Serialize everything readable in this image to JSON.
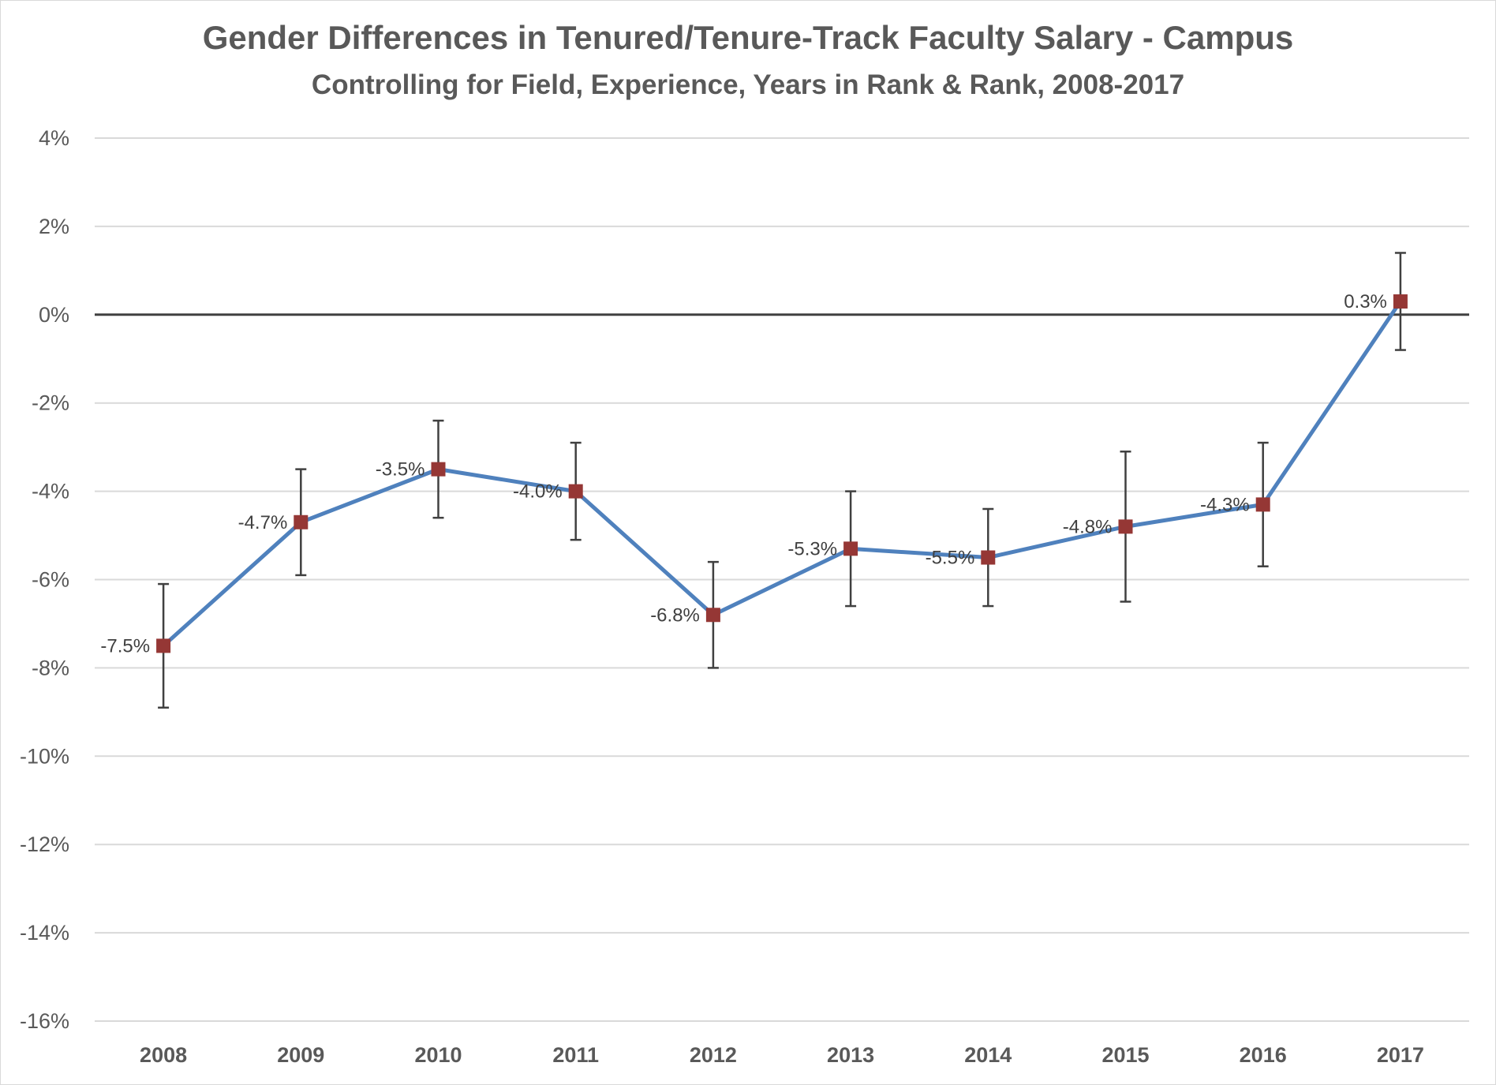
{
  "chart_data": {
    "type": "line",
    "title": "Gender Differences in Tenured/Tenure-Track Faculty Salary - Campus",
    "subtitle": "Controlling for Field, Experience, Years in Rank & Rank, 2008-2017",
    "xlabel": "",
    "ylabel": "",
    "categories": [
      "2008",
      "2009",
      "2010",
      "2011",
      "2012",
      "2013",
      "2014",
      "2015",
      "2016",
      "2017"
    ],
    "series": [
      {
        "values": [
          -7.5,
          -4.7,
          -3.5,
          -4.0,
          -6.8,
          -5.3,
          -5.5,
          -4.8,
          -4.3,
          0.3
        ],
        "data_labels": [
          "-7.5%",
          "-4.7%",
          "-3.5%",
          "-4.0%",
          "-6.8%",
          "-5.3%",
          "-5.5%",
          "-4.8%",
          "-4.3%",
          "0.3%"
        ],
        "error_upper": [
          -6.1,
          -3.5,
          -2.4,
          -2.9,
          -5.6,
          -4.0,
          -4.4,
          -3.1,
          -2.9,
          1.4
        ],
        "error_lower": [
          -8.9,
          -5.9,
          -4.6,
          -5.1,
          -8.0,
          -6.6,
          -6.6,
          -6.5,
          -5.7,
          -0.8
        ],
        "line_color": "#4f81bd",
        "marker_color": "#953735",
        "marker": "square"
      }
    ],
    "ylim": [
      -16,
      4
    ],
    "y_ticks": [
      4,
      2,
      0,
      -2,
      -4,
      -6,
      -8,
      -10,
      -12,
      -14,
      -16
    ],
    "y_tick_labels": [
      "4%",
      "2%",
      "0%",
      "-2%",
      "-4%",
      "-6%",
      "-8%",
      "-10%",
      "-12%",
      "-14%",
      "-16%"
    ],
    "grid": true,
    "zero_line": true,
    "legend": "none",
    "colors": {
      "gridline": "#d9d9d9",
      "zero_line": "#404040",
      "error_bar": "#404040",
      "text": "#595959"
    }
  }
}
